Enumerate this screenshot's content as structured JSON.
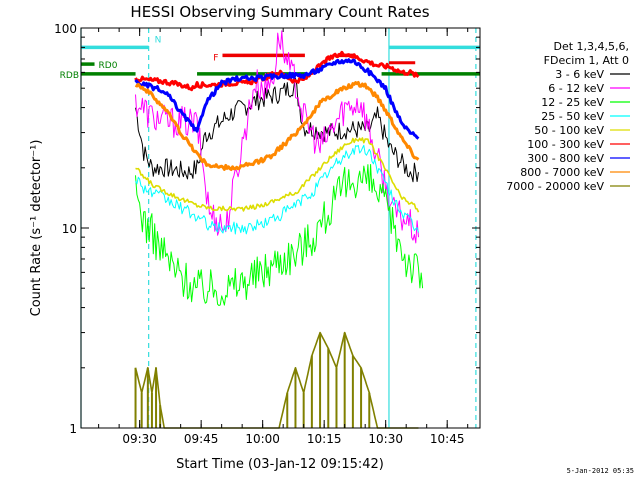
{
  "chart_data": {
    "type": "line",
    "title": "HESSI Observing Summary Count Rates",
    "xlabel": "Start Time (03-Jan-12 09:15:42)",
    "ylabel": "Count Rate (s⁻¹ detector⁻¹)",
    "yscale": "log",
    "ylim": [
      1,
      100
    ],
    "xlim_minutes": [
      15.7,
      113
    ],
    "x_ticks": [
      "09:30",
      "09:45",
      "10:00",
      "10:15",
      "10:30",
      "10:45"
    ],
    "y_ticks": [
      "1",
      "10",
      "100"
    ],
    "legend_header": [
      "Det 1,3,4,5,6,",
      "FDecim 1, Att 0"
    ],
    "legend_placement": "right",
    "series": [
      {
        "name": "3 - 6 keV",
        "color": "#000000",
        "points": [
          [
            29,
            40
          ],
          [
            31,
            24
          ],
          [
            33,
            20
          ],
          [
            36,
            20
          ],
          [
            42,
            19
          ],
          [
            44,
            20
          ],
          [
            46,
            29
          ],
          [
            52,
            37
          ],
          [
            58,
            43
          ],
          [
            64,
            47
          ],
          [
            68,
            52
          ],
          [
            70,
            32
          ],
          [
            76,
            30
          ],
          [
            80,
            31
          ],
          [
            86,
            31
          ],
          [
            88,
            36
          ],
          [
            91,
            25
          ],
          [
            94,
            21
          ],
          [
            96,
            19
          ],
          [
            98,
            19
          ]
        ]
      },
      {
        "name": "6 - 12 keV",
        "color": "#ff00ff",
        "points": [
          [
            29,
            43
          ],
          [
            33,
            36
          ],
          [
            37,
            34
          ],
          [
            41,
            34
          ],
          [
            44,
            33
          ],
          [
            47,
            12
          ],
          [
            51,
            10
          ],
          [
            55,
            26
          ],
          [
            58,
            53
          ],
          [
            61,
            50
          ],
          [
            63,
            62
          ],
          [
            64,
            95
          ],
          [
            66,
            65
          ],
          [
            68,
            54
          ],
          [
            70,
            36
          ],
          [
            74,
            25
          ],
          [
            80,
            40
          ],
          [
            84,
            43
          ],
          [
            88,
            22
          ],
          [
            92,
            12
          ],
          [
            95,
            11
          ],
          [
            98,
            9
          ]
        ]
      },
      {
        "name": "12 - 25 keV",
        "color": "#00ff00",
        "points": [
          [
            29,
            15
          ],
          [
            31,
            11
          ],
          [
            35,
            8
          ],
          [
            39,
            6
          ],
          [
            44,
            5
          ],
          [
            48,
            5
          ],
          [
            52,
            5
          ],
          [
            56,
            5.5
          ],
          [
            60,
            6
          ],
          [
            64,
            7
          ],
          [
            68,
            7.5
          ],
          [
            72,
            9
          ],
          [
            76,
            12
          ],
          [
            80,
            16
          ],
          [
            83,
            18
          ],
          [
            86,
            17
          ],
          [
            89,
            14
          ],
          [
            92,
            10
          ],
          [
            95,
            7
          ],
          [
            98,
            6
          ],
          [
            99,
            5
          ]
        ]
      },
      {
        "name": "25 - 50 keV",
        "color": "#00ffff",
        "points": [
          [
            29,
            18
          ],
          [
            31,
            16
          ],
          [
            33,
            15
          ],
          [
            36,
            14
          ],
          [
            39,
            13
          ],
          [
            42,
            12
          ],
          [
            45,
            11
          ],
          [
            48,
            10
          ],
          [
            52,
            10
          ],
          [
            56,
            10
          ],
          [
            60,
            10.5
          ],
          [
            64,
            11.5
          ],
          [
            68,
            13
          ],
          [
            72,
            15
          ],
          [
            76,
            19
          ],
          [
            80,
            23
          ],
          [
            83,
            25
          ],
          [
            86,
            24
          ],
          [
            88,
            20
          ],
          [
            91,
            15
          ],
          [
            94,
            12
          ],
          [
            97,
            10
          ],
          [
            98,
            9.5
          ]
        ]
      },
      {
        "name": "50 - 100 keV",
        "color": "#dddd00",
        "points": [
          [
            29,
            20
          ],
          [
            31,
            18
          ],
          [
            34,
            16
          ],
          [
            37,
            15
          ],
          [
            40,
            14
          ],
          [
            44,
            13
          ],
          [
            48,
            12.5
          ],
          [
            52,
            12.5
          ],
          [
            56,
            12.5
          ],
          [
            60,
            13
          ],
          [
            64,
            14
          ],
          [
            68,
            15
          ],
          [
            72,
            18
          ],
          [
            76,
            22
          ],
          [
            80,
            26
          ],
          [
            83,
            28
          ],
          [
            86,
            27
          ],
          [
            88,
            23
          ],
          [
            91,
            18
          ],
          [
            94,
            14
          ],
          [
            97,
            13
          ],
          [
            98,
            12
          ]
        ]
      },
      {
        "name": "100 - 300 keV",
        "color": "#ff0000",
        "points": [
          [
            29,
            56
          ],
          [
            32,
            55
          ],
          [
            36,
            54
          ],
          [
            40,
            52
          ],
          [
            43,
            50
          ],
          [
            44,
            52
          ],
          [
            48,
            52
          ],
          [
            52,
            53
          ],
          [
            56,
            53
          ],
          [
            60,
            56
          ],
          [
            64,
            60
          ],
          [
            68,
            54
          ],
          [
            70,
            55
          ],
          [
            76,
            70
          ],
          [
            80,
            75
          ],
          [
            84,
            70
          ],
          [
            88,
            65
          ],
          [
            91,
            64
          ],
          [
            94,
            60
          ],
          [
            96,
            60
          ],
          [
            98,
            57
          ]
        ]
      },
      {
        "name": "300 - 800 keV",
        "color": "#0000ff",
        "points": [
          [
            29,
            54
          ],
          [
            31,
            52
          ],
          [
            34,
            50
          ],
          [
            37,
            46
          ],
          [
            40,
            38
          ],
          [
            42,
            34
          ],
          [
            44,
            30
          ],
          [
            46,
            42
          ],
          [
            50,
            53
          ],
          [
            54,
            56
          ],
          [
            58,
            56
          ],
          [
            62,
            57
          ],
          [
            66,
            58
          ],
          [
            70,
            58
          ],
          [
            74,
            62
          ],
          [
            78,
            68
          ],
          [
            82,
            69
          ],
          [
            86,
            60
          ],
          [
            88,
            55
          ],
          [
            90,
            50
          ],
          [
            92,
            40
          ],
          [
            94,
            33
          ],
          [
            96,
            30
          ],
          [
            98,
            28
          ]
        ]
      },
      {
        "name": "800 - 7000 keV",
        "color": "#ff8800",
        "points": [
          [
            29,
            53
          ],
          [
            31,
            50
          ],
          [
            33,
            46
          ],
          [
            36,
            40
          ],
          [
            38,
            35
          ],
          [
            40,
            30
          ],
          [
            43,
            25
          ],
          [
            46,
            21
          ],
          [
            50,
            20
          ],
          [
            54,
            20
          ],
          [
            58,
            21
          ],
          [
            62,
            23
          ],
          [
            66,
            27
          ],
          [
            70,
            33
          ],
          [
            74,
            42
          ],
          [
            78,
            48
          ],
          [
            82,
            52
          ],
          [
            85,
            52
          ],
          [
            88,
            45
          ],
          [
            91,
            36
          ],
          [
            94,
            28
          ],
          [
            97,
            23
          ],
          [
            98,
            22
          ]
        ]
      },
      {
        "name": "7000 - 20000 keV",
        "color": "#808000",
        "points": [
          [
            29,
            2
          ],
          [
            30.5,
            1.5
          ],
          [
            32,
            2
          ],
          [
            33,
            1.5
          ],
          [
            34,
            2
          ],
          [
            35,
            1.3
          ],
          [
            36,
            1
          ],
          [
            64,
            1
          ],
          [
            66,
            1.5
          ],
          [
            68,
            2
          ],
          [
            70,
            1.5
          ],
          [
            72,
            2.3
          ],
          [
            74,
            3
          ],
          [
            76,
            2.5
          ],
          [
            78,
            2
          ],
          [
            80,
            3
          ],
          [
            82,
            2.3
          ],
          [
            84,
            2
          ],
          [
            86,
            1.5
          ],
          [
            88,
            1
          ],
          [
            98,
            1
          ]
        ]
      }
    ],
    "annotations": {
      "bars": [
        {
          "label": "N",
          "color": "#33dddd",
          "y": 80,
          "x_segments": [
            [
              15.7,
              32.2
            ],
            [
              90.8,
              113
            ]
          ]
        },
        {
          "label": "F",
          "color": "#ee0000",
          "y": 73,
          "x_segments": [
            [
              50.2,
              70.3
            ],
            [
              78.2,
              82.5
            ]
          ]
        },
        {
          "label": "RD0",
          "color": "#008000",
          "y": 66,
          "x_segments": [
            [
              15.7,
              19
            ]
          ]
        },
        {
          "label": "RDB",
          "color": "#008000",
          "y": 59,
          "x_segments": [
            [
              15.7,
              29
            ],
            [
              44,
              70.5
            ],
            [
              89,
              113
            ]
          ]
        }
      ],
      "marker_extra": {
        "color": "#ee0000",
        "x": [
          90.8,
          97.2
        ],
        "y": 67
      },
      "vlines": [
        {
          "color": "#33dddd",
          "x": 15.7,
          "style": "solid"
        },
        {
          "color": "#33dddd",
          "x": 32.2,
          "style": "dashed"
        },
        {
          "color": "#33dddd",
          "x": 90.8,
          "style": "solid"
        },
        {
          "color": "#33dddd",
          "x": 112,
          "style": "dashed"
        }
      ]
    }
  },
  "footer_date": "5-Jan-2012 05:35"
}
